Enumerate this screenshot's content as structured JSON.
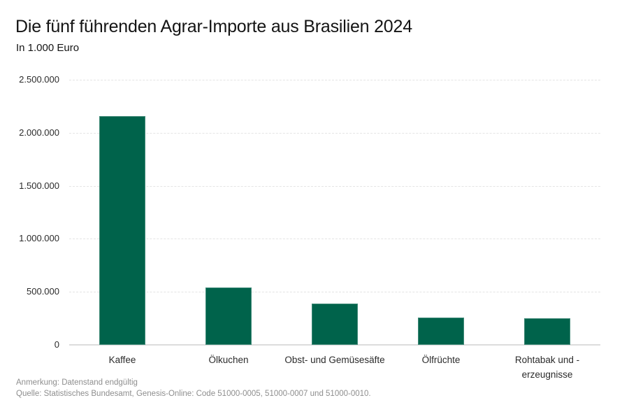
{
  "header": {
    "title": "Die fünf führenden Agrar-Importe aus Brasilien 2024",
    "subtitle": "In 1.000 Euro"
  },
  "footer": {
    "note": "Anmerkung: Datenstand endgültig",
    "source": "Quelle: Statistisches Bundesamt, Genesis-Online: Code 51000-0005, 51000-0007 und 51000-0010."
  },
  "colors": {
    "bar": "#00634B",
    "grid": "#e4e4e4",
    "axis": "#dcdcdc",
    "text": "#141414",
    "muted": "#8e8e8e"
  },
  "chart_data": {
    "type": "bar",
    "title": "Die fünf führenden Agrar-Importe aus Brasilien 2024",
    "subtitle": "In 1.000 Euro",
    "xlabel": "",
    "ylabel": "In 1.000 Euro",
    "categories": [
      "Kaffee",
      "Ölkuchen",
      "Obst- und Gemüsesäfte",
      "Ölfrüchte",
      "Rohtabak und -\nerzeugnisse"
    ],
    "values": [
      2160000,
      540000,
      388000,
      260000,
      251000
    ],
    "ylim": [
      0,
      2500000
    ],
    "yticks": [
      0,
      500000,
      1000000,
      1500000,
      2000000,
      2500000
    ],
    "ytick_labels": [
      "0",
      "500.000",
      "1.000.000",
      "1.500.000",
      "2.000.000",
      "2.500.000"
    ],
    "grid": true,
    "grid_style": "dashed-horizontal",
    "legend": false,
    "bar_color": "#00634B"
  }
}
